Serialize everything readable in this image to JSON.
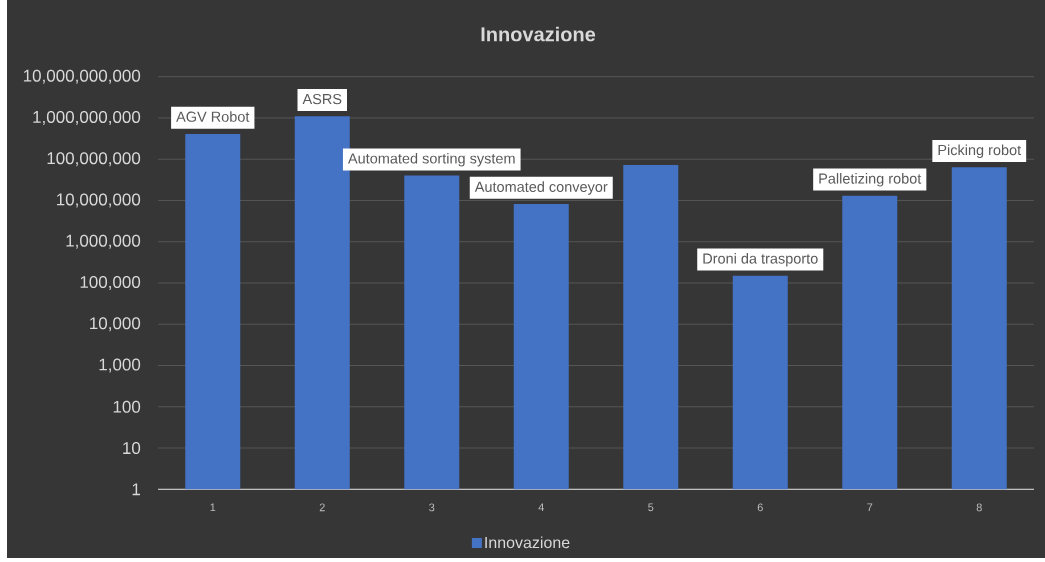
{
  "chart_data": {
    "type": "bar",
    "title": "Innovazione",
    "x": [
      1,
      2,
      3,
      4,
      5,
      6,
      7,
      8
    ],
    "xlim": [
      0.5,
      8.5
    ],
    "xticks": [
      1,
      2,
      3,
      4,
      5,
      6,
      7,
      8
    ],
    "ylim": [
      1,
      10000000000
    ],
    "yticks": [
      1,
      10,
      100,
      {
        "value": 1000,
        "label": "1,000"
      },
      {
        "value": 10000,
        "label": "10,000"
      },
      {
        "value": 100000,
        "label": "100,000"
      },
      {
        "value": 1000000,
        "label": "1,000,000"
      },
      {
        "value": 10000000,
        "label": "10,000,000"
      },
      {
        "value": 100000000,
        "label": "100,000,000"
      },
      {
        "value": 1000000000,
        "label": "1,000,000,000"
      },
      {
        "value": 10000000000,
        "label": "10,000,000,000"
      }
    ],
    "log": "y",
    "grid": "y",
    "legend": "bottom",
    "series": [
      {
        "name": "Innovazione",
        "color": "#4472c4",
        "values": [
          410000000,
          1100000000,
          40000000,
          8200000,
          72000000,
          150000,
          13000000,
          64000000
        ]
      }
    ],
    "annotations": [
      {
        "text": "AGV Robot",
        "x": 1,
        "y": 410000000
      },
      {
        "text": "ASRS",
        "x": 2,
        "y": 1100000000
      },
      {
        "text": "Automated sorting system",
        "x": 3,
        "y": 40000000
      },
      {
        "text": "Automated conveyor",
        "x": 4,
        "y": 8200000
      },
      {
        "text": "Droni da trasporto",
        "x": 6,
        "y": 150000
      },
      {
        "text": "Palletizing robot",
        "x": 7,
        "y": 13000000
      },
      {
        "text": "Picking robot",
        "x": 8,
        "y": 64000000
      }
    ]
  }
}
